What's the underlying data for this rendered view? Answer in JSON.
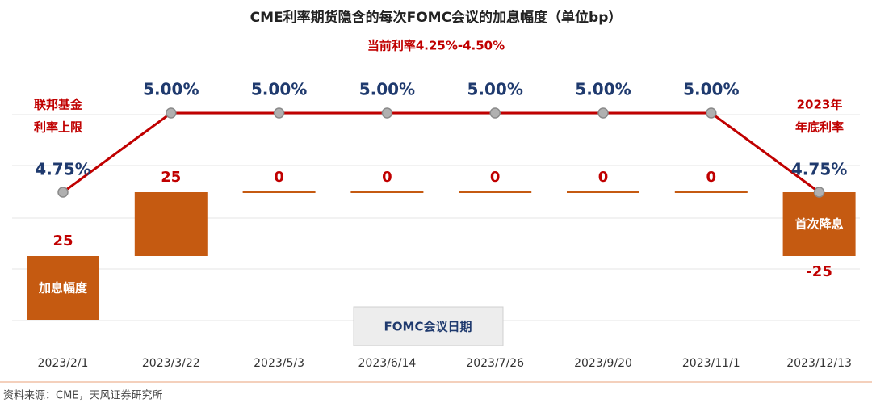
{
  "chart_data": [
    {
      "type": "line",
      "title": "CME利率期货隐含的每次FOMC会议的加息幅度（单位bp）",
      "subtitle": "当前利率4.25%-4.50%",
      "x_label": "FOMC会议日期",
      "source": "资料来源：CME，天风证券研究所",
      "left_note": [
        "联邦基金",
        "利率上限"
      ],
      "right_note": [
        "2023年",
        "年底利率"
      ],
      "categories": [
        "2023/2/1",
        "2023/3/22",
        "2023/5/3",
        "2023/6/14",
        "2023/7/26",
        "2023/9/20",
        "2023/11/1",
        "2023/12/13"
      ],
      "series": [
        {
          "name": "联邦基金利率上限",
          "color": "#c00000",
          "values": [
            4.75,
            5.0,
            5.0,
            5.0,
            5.0,
            5.0,
            5.0,
            4.75
          ],
          "value_labels": [
            "4.75%",
            "5.00%",
            "5.00%",
            "5.00%",
            "5.00%",
            "5.00%",
            "5.00%",
            "4.75%"
          ]
        }
      ],
      "ylim": [
        4.5,
        5.25
      ]
    },
    {
      "type": "waterfall",
      "series": [
        {
          "name": "加息幅度",
          "color": "#c55a11",
          "values": [
            25,
            25,
            0,
            0,
            0,
            0,
            0,
            -25
          ]
        }
      ],
      "bar_notes": [
        "加息幅度",
        "首次降息"
      ],
      "ylim": [
        0,
        75
      ]
    }
  ]
}
